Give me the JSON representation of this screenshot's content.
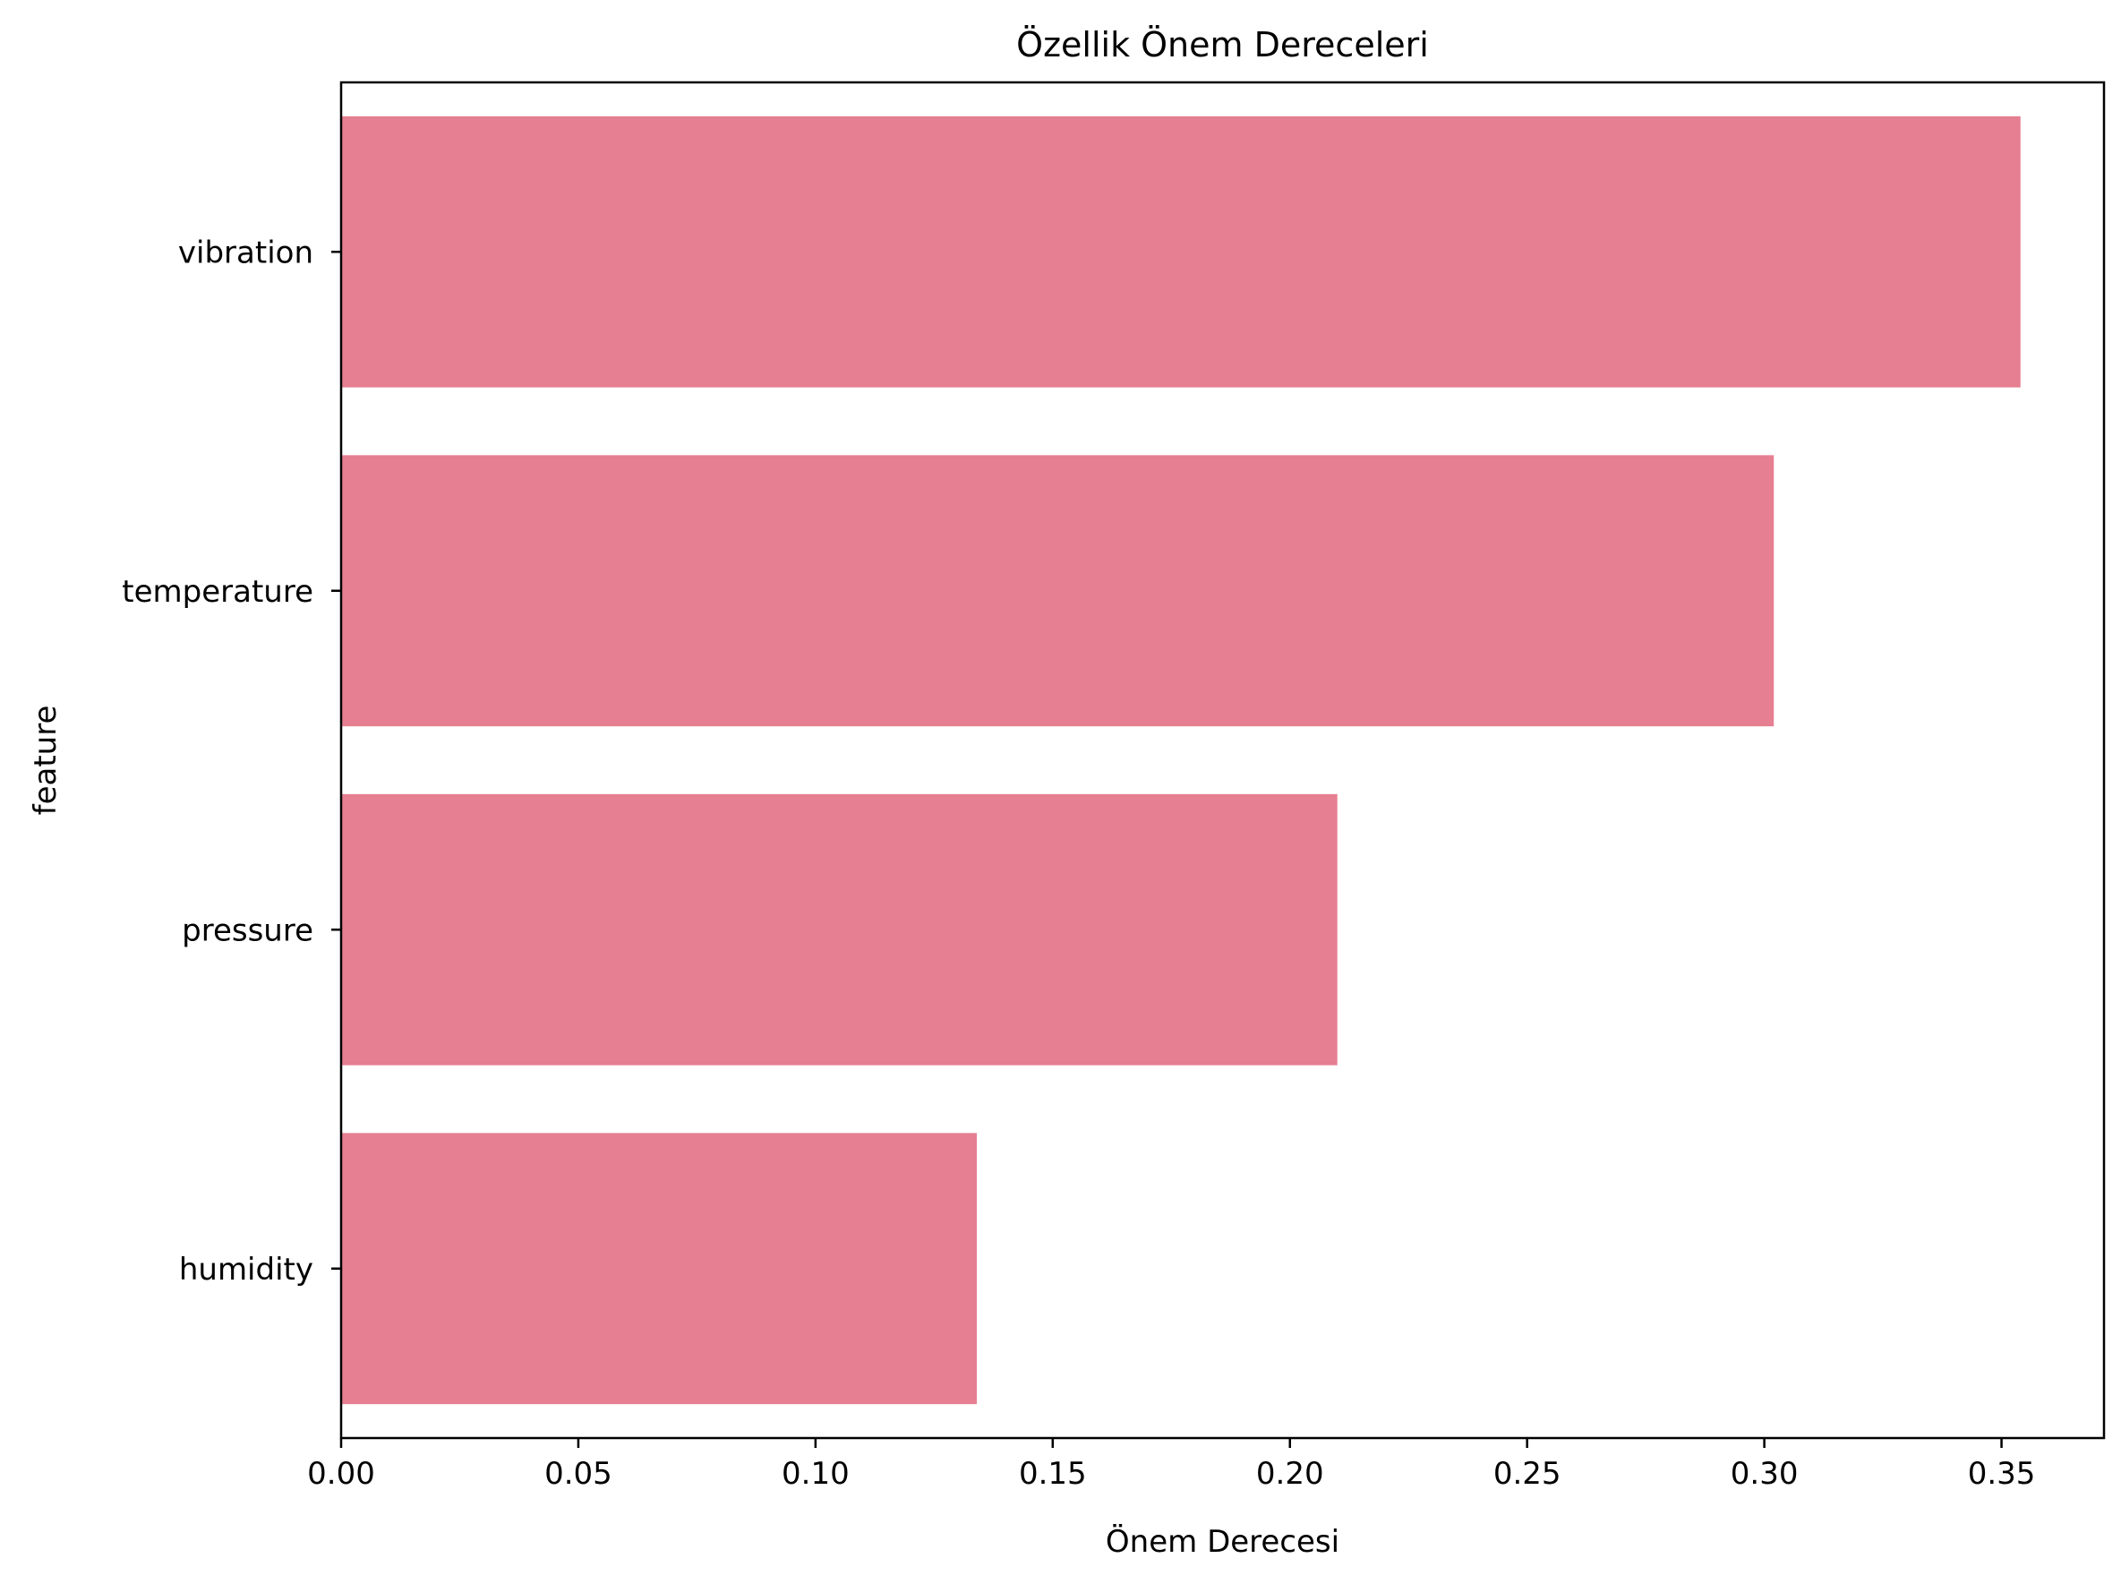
{
  "chart_data": {
    "type": "bar",
    "orientation": "horizontal",
    "title": "Özellik Önem Dereceleri",
    "xlabel": "Önem Derecesi",
    "ylabel": "feature",
    "categories": [
      "vibration",
      "temperature",
      "pressure",
      "humidity"
    ],
    "values": [
      0.354,
      0.302,
      0.21,
      0.134
    ],
    "xlim": [
      0,
      0.3716
    ],
    "xticks": [
      "0.00",
      "0.05",
      "0.10",
      "0.15",
      "0.20",
      "0.25",
      "0.30",
      "0.35"
    ],
    "grid": false,
    "legend": "none",
    "bar_color": "#e67f91"
  }
}
